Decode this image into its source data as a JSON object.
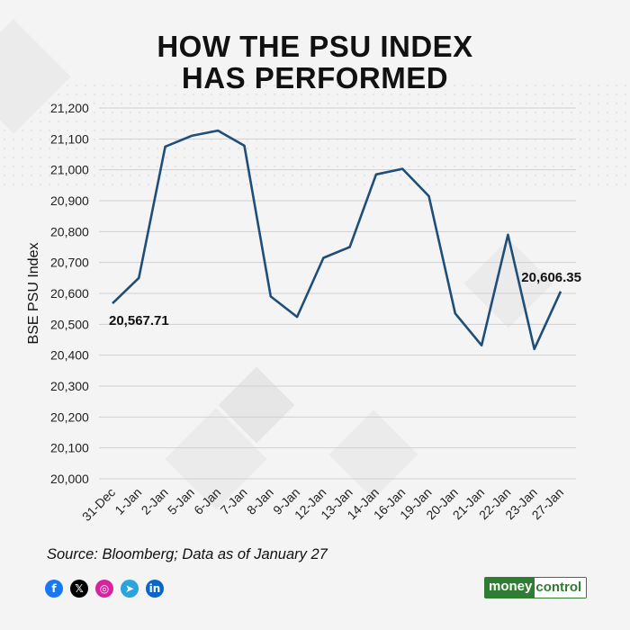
{
  "title_line1": "HOW THE PSU INDEX",
  "title_line2": "HAS PERFORMED",
  "chart_data": {
    "type": "line",
    "ylabel": "BSE PSU Index",
    "xlabel": "",
    "ylim": [
      20000,
      21200
    ],
    "yticks": [
      20000,
      20100,
      20200,
      20300,
      20400,
      20500,
      20600,
      20700,
      20800,
      20900,
      21000,
      21100,
      21200
    ],
    "ytick_labels": [
      "20,000",
      "20,100",
      "20,200",
      "20,300",
      "20,400",
      "20,500",
      "20,600",
      "20,700",
      "20,800",
      "20,900",
      "21,000",
      "21,100",
      "21,200"
    ],
    "categories": [
      "31-Dec",
      "1-Jan",
      "2-Jan",
      "5-Jan",
      "6-Jan",
      "7-Jan",
      "8-Jan",
      "9-Jan",
      "12-Jan",
      "13-Jan",
      "14-Jan",
      "16-Jan",
      "19-Jan",
      "20-Jan",
      "21-Jan",
      "22-Jan",
      "23-Jan",
      "27-Jan"
    ],
    "series": [
      {
        "values": [
          20567.71,
          20650,
          21075,
          21110,
          21127,
          21078,
          20590,
          20524,
          20715,
          20750,
          20985,
          21003,
          20915,
          20535,
          20432,
          20790,
          20420,
          20606.35
        ],
        "color": "#1f4e79"
      }
    ],
    "annotations": [
      {
        "label": "20,567.71",
        "index": 0
      },
      {
        "label": "20,606.35",
        "index": 17
      }
    ],
    "grid": "horizontal"
  },
  "source": "Source: Bloomberg; Data as of January 27",
  "social": [
    {
      "icon": "facebook-icon",
      "glyph": "f",
      "color": "#1877f2"
    },
    {
      "icon": "x-icon",
      "glyph": "𝕏",
      "color": "#000000"
    },
    {
      "icon": "instagram-icon",
      "glyph": "◎",
      "color": "#d6249f"
    },
    {
      "icon": "telegram-icon",
      "glyph": "➤",
      "color": "#2aa3df"
    },
    {
      "icon": "linkedin-icon",
      "glyph": "in",
      "color": "#0a66c2"
    }
  ],
  "logo": {
    "part1": "money",
    "part2": "control"
  }
}
